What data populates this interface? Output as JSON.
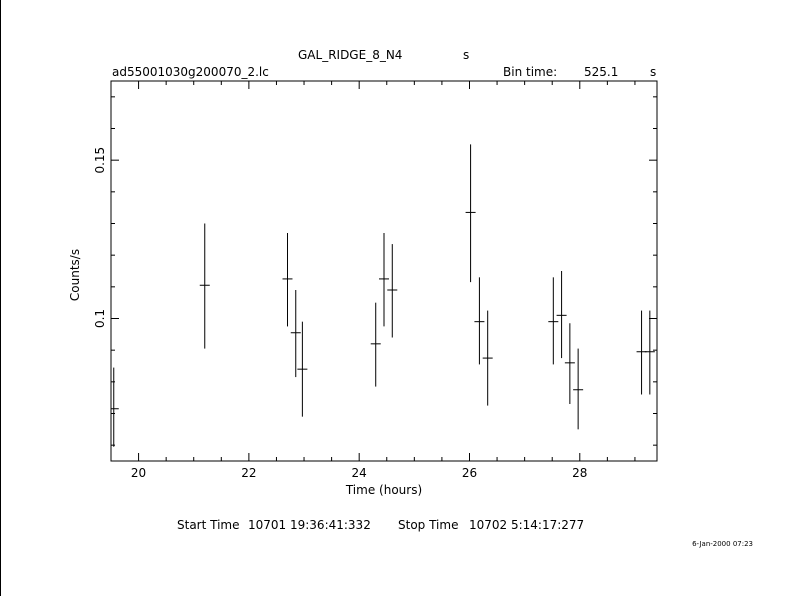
{
  "header": {
    "object": "GAL_RIDGE_8_N4",
    "object_unit": "s",
    "filename": "ad55001030g200070_2.lc",
    "bin_time_label": "Bin time:",
    "bin_time_value": "525.1",
    "bin_time_unit": "s"
  },
  "footer": {
    "start_label": "Start Time",
    "start_value": "10701  19:36:41:332",
    "stop_label": "Stop Time",
    "stop_value": "10702   5:14:17:277",
    "date_stamp": "6-Jan-2000 07:23"
  },
  "colors": {
    "ink": "#000000",
    "background": "#ffffff"
  },
  "chart_data": {
    "type": "scatter",
    "xlabel": "Time (hours)",
    "ylabel": "Counts/s",
    "xlim": [
      19.5,
      29.4
    ],
    "ylim": [
      0.055,
      0.175
    ],
    "x_ticks": [
      20,
      22,
      24,
      26,
      28
    ],
    "x_tick_labels": [
      "20",
      "22",
      "24",
      "26",
      "28"
    ],
    "y_ticks": [
      0.1,
      0.15
    ],
    "y_tick_labels": [
      "0.1",
      "0.15"
    ],
    "grid": false,
    "series": [
      {
        "points": [
          {
            "x": 19.55,
            "y": 0.0715,
            "yerr_low": 0.0595,
            "yerr_high": 0.0845
          },
          {
            "x": 21.2,
            "y": 0.1105,
            "yerr_low": 0.0905,
            "yerr_high": 0.13
          },
          {
            "x": 22.7,
            "y": 0.1125,
            "yerr_low": 0.0975,
            "yerr_high": 0.127
          },
          {
            "x": 22.85,
            "y": 0.0955,
            "yerr_low": 0.0815,
            "yerr_high": 0.109
          },
          {
            "x": 22.97,
            "y": 0.084,
            "yerr_low": 0.069,
            "yerr_high": 0.099
          },
          {
            "x": 24.3,
            "y": 0.092,
            "yerr_low": 0.0785,
            "yerr_high": 0.105
          },
          {
            "x": 24.45,
            "y": 0.1125,
            "yerr_low": 0.0975,
            "yerr_high": 0.127
          },
          {
            "x": 24.6,
            "y": 0.109,
            "yerr_low": 0.094,
            "yerr_high": 0.1235
          },
          {
            "x": 26.02,
            "y": 0.1335,
            "yerr_low": 0.1115,
            "yerr_high": 0.155
          },
          {
            "x": 26.18,
            "y": 0.099,
            "yerr_low": 0.0855,
            "yerr_high": 0.113
          },
          {
            "x": 26.33,
            "y": 0.0875,
            "yerr_low": 0.0725,
            "yerr_high": 0.1025
          },
          {
            "x": 27.52,
            "y": 0.099,
            "yerr_low": 0.0855,
            "yerr_high": 0.113
          },
          {
            "x": 27.67,
            "y": 0.101,
            "yerr_low": 0.0875,
            "yerr_high": 0.115
          },
          {
            "x": 27.82,
            "y": 0.086,
            "yerr_low": 0.073,
            "yerr_high": 0.0985
          },
          {
            "x": 27.97,
            "y": 0.0775,
            "yerr_low": 0.065,
            "yerr_high": 0.0905
          },
          {
            "x": 29.12,
            "y": 0.0895,
            "yerr_low": 0.076,
            "yerr_high": 0.1025
          },
          {
            "x": 29.27,
            "y": 0.0895,
            "yerr_low": 0.076,
            "yerr_high": 0.1025
          }
        ]
      }
    ]
  }
}
